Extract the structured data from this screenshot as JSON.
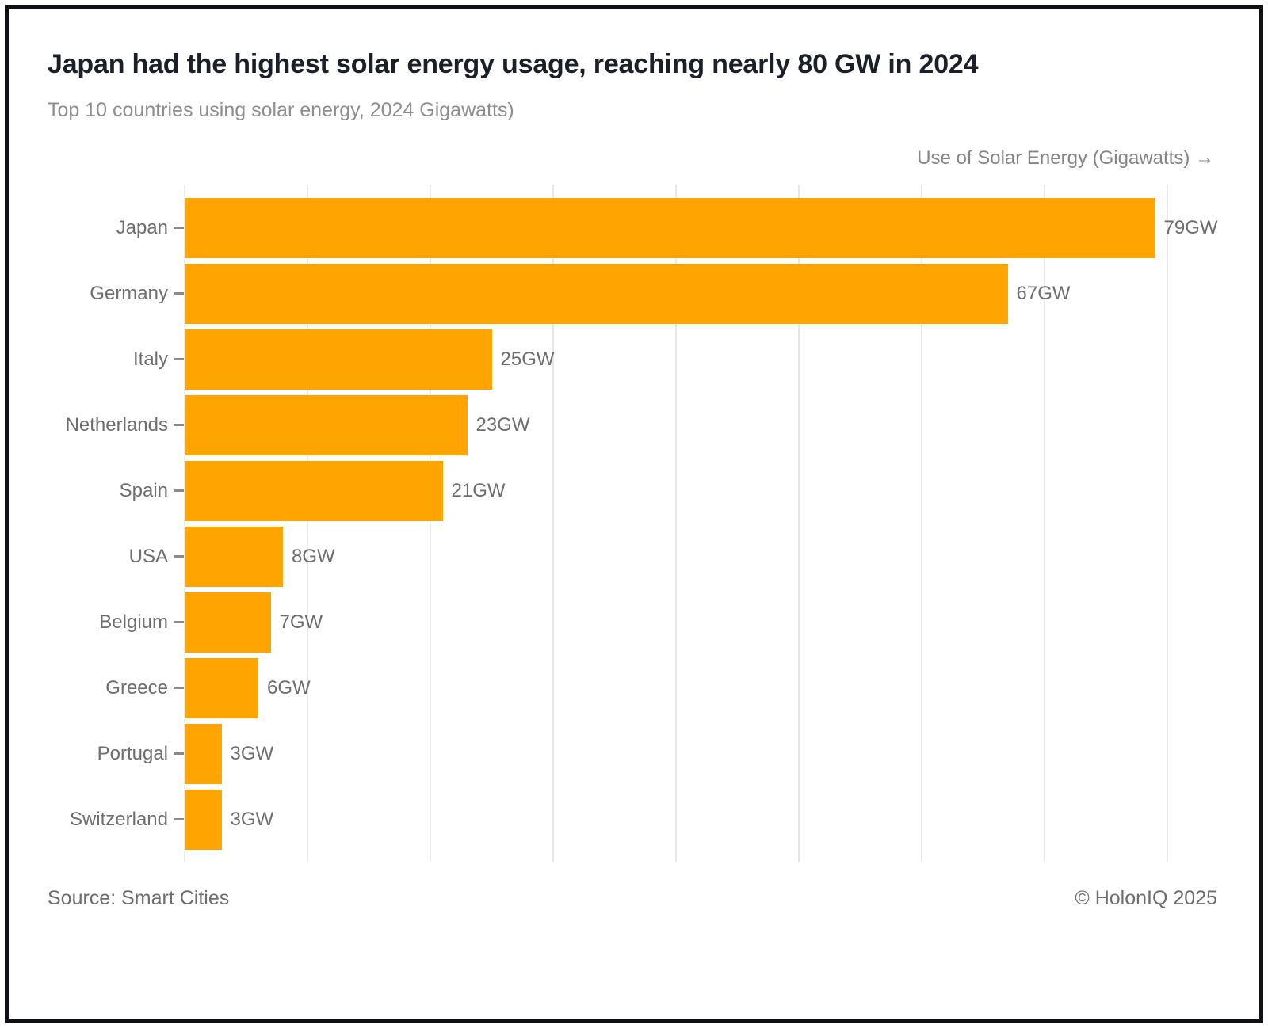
{
  "footer": {
    "source": "Source: Smart Cities",
    "copyright": "© HolonIQ 2025"
  },
  "colors": {
    "bar": "#FFA502",
    "title_text": "#1B2028",
    "subtitle_text": "#8D8D8D",
    "label_text": "#6E6E6E",
    "gridline": "#E9E9E9",
    "tick": "#8A8A8A",
    "frame_border": "#0F1115",
    "background": "#FFFFFF"
  },
  "chart_data": {
    "type": "bar",
    "orientation": "horizontal",
    "title": "Japan had the highest solar energy usage, reaching nearly 80 GW in 2024",
    "subtitle": "Top 10 countries using solar energy, 2024 Gigawatts)",
    "xlabel": "Use of Solar Energy (Gigawatts) →",
    "ylabel": "",
    "categories": [
      "Japan",
      "Germany",
      "Italy",
      "Netherlands",
      "Spain",
      "USA",
      "Belgium",
      "Greece",
      "Portugal",
      "Switzerland"
    ],
    "values": [
      79,
      67,
      25,
      23,
      21,
      8,
      7,
      6,
      3,
      3
    ],
    "unit": "GW",
    "value_labels": [
      "79GW",
      "67GW",
      "25GW",
      "23GW",
      "21GW",
      "8GW",
      "7GW",
      "6GW",
      "3GW",
      "3GW"
    ],
    "xlim": [
      0,
      80
    ],
    "gridline_interval": 10,
    "x_tick_labels_shown": false,
    "grid": "vertical",
    "legend": "none"
  }
}
